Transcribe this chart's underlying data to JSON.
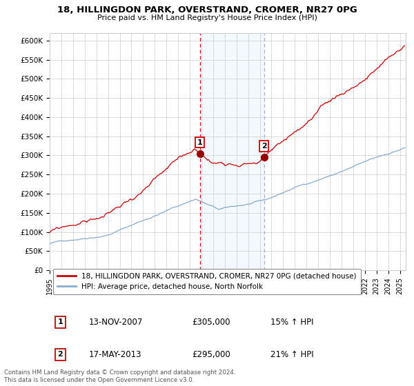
{
  "title": "18, HILLINGDON PARK, OVERSTRAND, CROMER, NR27 0PG",
  "subtitle": "Price paid vs. HM Land Registry's House Price Index (HPI)",
  "ylim": [
    0,
    620000
  ],
  "yticks": [
    0,
    50000,
    100000,
    150000,
    200000,
    250000,
    300000,
    350000,
    400000,
    450000,
    500000,
    550000,
    600000
  ],
  "ytick_labels": [
    "£0",
    "£50K",
    "£100K",
    "£150K",
    "£200K",
    "£250K",
    "£300K",
    "£350K",
    "£400K",
    "£450K",
    "£500K",
    "£550K",
    "£600K"
  ],
  "xlim_start": 1995.0,
  "xlim_end": 2025.5,
  "sale1_x": 2007.87,
  "sale1_y": 305000,
  "sale1_label": "1",
  "sale1_date": "13-NOV-2007",
  "sale1_price": "£305,000",
  "sale1_hpi": "15% ↑ HPI",
  "sale2_x": 2013.37,
  "sale2_y": 295000,
  "sale2_label": "2",
  "sale2_date": "17-MAY-2013",
  "sale2_price": "£295,000",
  "sale2_hpi": "21% ↑ HPI",
  "line1_color": "#cc0000",
  "line2_color": "#88aacc",
  "shade_color": "#ddeeff",
  "marker_color": "#990000",
  "vline1_color": "#cc0000",
  "vline1_style": "--",
  "vline2_color": "#aaaacc",
  "vline2_style": "--",
  "legend1_label": "18, HILLINGDON PARK, OVERSTRAND, CROMER, NR27 0PG (detached house)",
  "legend2_label": "HPI: Average price, detached house, North Norfolk",
  "footer": "Contains HM Land Registry data © Crown copyright and database right 2024.\nThis data is licensed under the Open Government Licence v3.0.",
  "background_color": "#ffffff"
}
